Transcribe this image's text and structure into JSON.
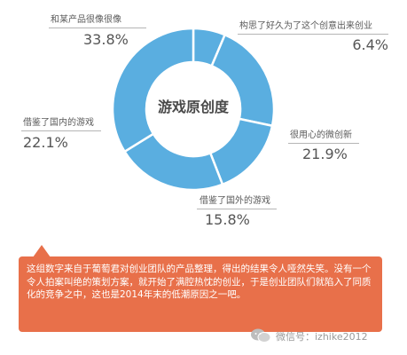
{
  "chart_data": {
    "type": "pie",
    "title": "游戏原创度",
    "series": [
      {
        "name": "构思了好久为了这个创意出来创业",
        "value": 6.4,
        "label": "6.4%"
      },
      {
        "name": "很用心的微创新",
        "value": 21.9,
        "label": "21.9%"
      },
      {
        "name": "借鉴了国外的游戏",
        "value": 15.8,
        "label": "15.8%"
      },
      {
        "name": "借鉴了国内的游戏",
        "value": 22.1,
        "label": "22.1%"
      },
      {
        "name": "和某产品很像很像",
        "value": 33.8,
        "label": "33.8%"
      }
    ],
    "colors": {
      "ring": "#5aaee0",
      "center_text": "#4a4a4a"
    }
  },
  "note": {
    "text": "这组数字来自于葡萄君对创业团队的产品整理，得出的结果令人哑然失笑。没有一个令人拍案叫绝的策划方案，就开始了满腔热忱的创业，于是创业团队们就陷入了同质化的竞争之中，这也是2014年末的低潮原因之一吧。",
    "color": "#e8704a"
  },
  "watermark": {
    "text": "微信号：izhike2012",
    "icon": "wechat-icon"
  }
}
